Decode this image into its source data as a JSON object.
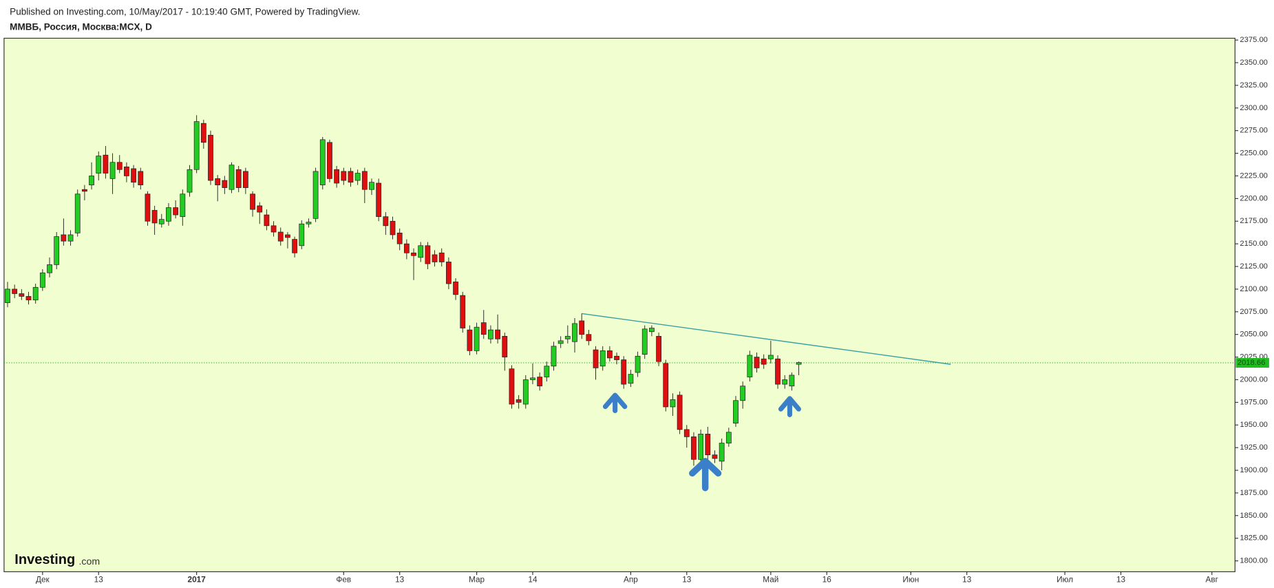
{
  "header": {
    "published": "Published on Investing.com, 10/May/2017 - 10:19:40 GMT, Powered by TradingView.",
    "symbol": "ММВБ, Россия, Москва:MCX, D"
  },
  "logo": {
    "brand": "Investing",
    "suffix": ".com"
  },
  "chart_data": {
    "type": "candlestick",
    "up_color": "#22cc22",
    "down_color": "#e00f0f",
    "background": "#f1ffd0",
    "grid": false,
    "ylim": [
      1788,
      2377
    ],
    "yticks": [
      {
        "value": 1800,
        "label": "1800.00"
      },
      {
        "value": 1825,
        "label": "1825.00"
      },
      {
        "value": 1850,
        "label": "1850.00"
      },
      {
        "value": 1875,
        "label": "1875.00"
      },
      {
        "value": 1900,
        "label": "1900.00"
      },
      {
        "value": 1925,
        "label": "1925.00"
      },
      {
        "value": 1950,
        "label": "1950.00"
      },
      {
        "value": 1975,
        "label": "1975.00"
      },
      {
        "value": 2000,
        "label": "2000.00"
      },
      {
        "value": 2025,
        "label": "2025.00"
      },
      {
        "value": 2050,
        "label": "2050.00"
      },
      {
        "value": 2075,
        "label": "2075.00"
      },
      {
        "value": 2100,
        "label": "2100.00"
      },
      {
        "value": 2125,
        "label": "2125.00"
      },
      {
        "value": 2150,
        "label": "2150.00"
      },
      {
        "value": 2175,
        "label": "2175.00"
      },
      {
        "value": 2200,
        "label": "2200.00"
      },
      {
        "value": 2225,
        "label": "2225.00"
      },
      {
        "value": 2250,
        "label": "2250.00"
      },
      {
        "value": 2275,
        "label": "2275.00"
      },
      {
        "value": 2300,
        "label": "2300.00"
      },
      {
        "value": 2325,
        "label": "2325.00"
      },
      {
        "value": 2350,
        "label": "2350.00"
      },
      {
        "value": 2375,
        "label": "2375.00"
      }
    ],
    "xlim": [
      -0.5,
      175.3
    ],
    "xticks": [
      {
        "value": 5,
        "label": "Дек"
      },
      {
        "value": 13,
        "label": "13"
      },
      {
        "value": 27,
        "label": "2017"
      },
      {
        "value": 48,
        "label": "Фев"
      },
      {
        "value": 56,
        "label": "13"
      },
      {
        "value": 67,
        "label": "Мар"
      },
      {
        "value": 75,
        "label": "14"
      },
      {
        "value": 89,
        "label": "Апр"
      },
      {
        "value": 97,
        "label": "13"
      },
      {
        "value": 109,
        "label": "Май"
      },
      {
        "value": 117,
        "label": "16"
      },
      {
        "value": 129,
        "label": "Июн"
      },
      {
        "value": 137,
        "label": "13"
      },
      {
        "value": 151,
        "label": "Июл"
      },
      {
        "value": 159,
        "label": "13"
      },
      {
        "value": 172,
        "label": "Авг"
      }
    ],
    "last_price": 2018.66,
    "trendline": {
      "x": [
        82,
        134.7
      ],
      "y": [
        2073,
        2017
      ]
    },
    "open": [
      2085,
      2100,
      2095,
      2092,
      2088,
      2102,
      2118,
      2127,
      2160,
      2153,
      2162,
      2210,
      2215,
      2228,
      2248,
      2222,
      2240,
      2235,
      2233,
      2230,
      2205,
      2187,
      2172,
      2175,
      2190,
      2180,
      2207,
      2232,
      2283,
      2270,
      2222,
      2220,
      2210,
      2232,
      2230,
      2205,
      2192,
      2182,
      2170,
      2163,
      2160,
      2155,
      2148,
      2172,
      2178,
      2215,
      2262,
      2232,
      2230,
      2230,
      2220,
      2230,
      2210,
      2217,
      2180,
      2175,
      2162,
      2150,
      2140,
      2135,
      2148,
      2138,
      2140,
      2130,
      2108,
      2093,
      2055,
      2032,
      2063,
      2045,
      2055,
      2048,
      2012,
      1978,
      1973,
      2000,
      2003,
      2003,
      2015,
      2040,
      2045,
      2042,
      2065,
      2050,
      2033,
      2015,
      2032,
      2026,
      2022,
      1996,
      2008,
      2028,
      2053,
      2048,
      2018,
      1970,
      1983,
      1945,
      1937,
      1912,
      1940,
      1917,
      1910,
      1930,
      1952,
      1977,
      2003,
      2025,
      2023,
      2023,
      2023,
      1995,
      1993,
      2017
    ],
    "high": [
      2108,
      2105,
      2100,
      2097,
      2106,
      2122,
      2135,
      2163,
      2178,
      2165,
      2210,
      2215,
      2240,
      2252,
      2258,
      2250,
      2248,
      2240,
      2237,
      2234,
      2208,
      2192,
      2183,
      2195,
      2198,
      2210,
      2237,
      2292,
      2287,
      2275,
      2226,
      2225,
      2240,
      2236,
      2234,
      2208,
      2196,
      2188,
      2175,
      2168,
      2163,
      2158,
      2176,
      2178,
      2234,
      2268,
      2265,
      2236,
      2234,
      2234,
      2232,
      2234,
      2222,
      2222,
      2185,
      2180,
      2167,
      2155,
      2145,
      2152,
      2152,
      2143,
      2145,
      2135,
      2112,
      2097,
      2060,
      2063,
      2077,
      2060,
      2072,
      2052,
      2016,
      1983,
      2005,
      2018,
      2008,
      2020,
      2042,
      2048,
      2060,
      2068,
      2073,
      2055,
      2037,
      2037,
      2037,
      2030,
      2026,
      2011,
      2031,
      2060,
      2060,
      2052,
      2022,
      1985,
      1987,
      1950,
      1942,
      1945,
      1948,
      1922,
      1935,
      1947,
      1982,
      1998,
      2032,
      2030,
      2028,
      2043,
      2027,
      2005,
      2008,
      2020
    ],
    "low": [
      2080,
      2090,
      2088,
      2083,
      2084,
      2098,
      2113,
      2122,
      2148,
      2148,
      2158,
      2198,
      2210,
      2220,
      2222,
      2205,
      2228,
      2218,
      2212,
      2210,
      2170,
      2160,
      2168,
      2170,
      2178,
      2170,
      2202,
      2228,
      2255,
      2215,
      2197,
      2205,
      2206,
      2207,
      2205,
      2180,
      2172,
      2165,
      2158,
      2148,
      2145,
      2135,
      2144,
      2168,
      2174,
      2210,
      2218,
      2212,
      2215,
      2213,
      2215,
      2195,
      2204,
      2175,
      2160,
      2155,
      2143,
      2133,
      2110,
      2130,
      2122,
      2125,
      2125,
      2100,
      2088,
      2052,
      2027,
      2028,
      2045,
      2040,
      2040,
      2010,
      1968,
      1968,
      1968,
      1995,
      1988,
      1998,
      2010,
      2035,
      2040,
      2030,
      2045,
      2038,
      2000,
      2010,
      2020,
      2017,
      1990,
      1992,
      2003,
      2023,
      2048,
      2015,
      1965,
      1960,
      1940,
      1925,
      1905,
      1905,
      1912,
      1908,
      1900,
      1926,
      1948,
      1968,
      1998,
      2008,
      2012,
      2018,
      1990,
      1990,
      1988,
      2005
    ],
    "close": [
      2100,
      2095,
      2092,
      2088,
      2102,
      2118,
      2127,
      2158,
      2153,
      2160,
      2205,
      2208,
      2225,
      2247,
      2228,
      2240,
      2232,
      2225,
      2218,
      2215,
      2175,
      2173,
      2177,
      2190,
      2182,
      2205,
      2232,
      2285,
      2262,
      2220,
      2215,
      2212,
      2237,
      2212,
      2212,
      2188,
      2185,
      2170,
      2163,
      2153,
      2157,
      2140,
      2172,
      2174,
      2230,
      2265,
      2222,
      2217,
      2220,
      2218,
      2228,
      2210,
      2218,
      2180,
      2170,
      2160,
      2150,
      2140,
      2137,
      2148,
      2128,
      2130,
      2130,
      2106,
      2094,
      2057,
      2032,
      2058,
      2050,
      2055,
      2045,
      2025,
      1973,
      1975,
      2000,
      2002,
      1993,
      2015,
      2037,
      2043,
      2048,
      2062,
      2050,
      2043,
      2013,
      2032,
      2024,
      2022,
      1995,
      2006,
      2026,
      2056,
      2057,
      2020,
      1970,
      1978,
      1945,
      1937,
      1912,
      1940,
      1917,
      1913,
      1930,
      1942,
      1977,
      1993,
      2027,
      2013,
      2017,
      2027,
      1995,
      2000,
      2005,
      2019
    ]
  }
}
